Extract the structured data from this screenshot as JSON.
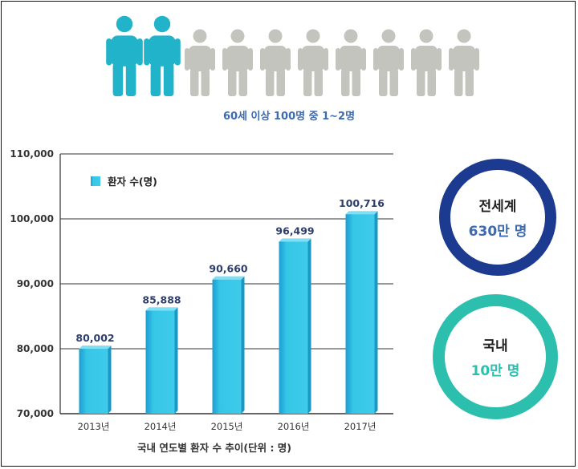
{
  "header": {
    "people_total": 10,
    "people_highlighted": 2,
    "highlight_color": "#20b3c9",
    "muted_color": "#c4c4bf",
    "caption": "60세 이상 100명 중 1~2명"
  },
  "chart_data": {
    "type": "bar",
    "categories": [
      "2013년",
      "2014년",
      "2015년",
      "2016년",
      "2017년"
    ],
    "values": [
      80002,
      85888,
      90660,
      96499,
      100716
    ],
    "value_labels": [
      "80,002",
      "85,888",
      "90,660",
      "96,499",
      "100,716"
    ],
    "ylim": [
      70000,
      110000
    ],
    "yticks": [
      70000,
      80000,
      90000,
      100000,
      110000
    ],
    "ytick_labels": [
      "70,000",
      "80,000",
      "90,000",
      "100,000",
      "110,000"
    ],
    "legend": {
      "label": "환자 수(명)",
      "placement": "top-left"
    },
    "xlabel": "국내 연도별 환자 수 추이(단위 : 명)",
    "grid": true,
    "bar_color": "#35c6e6"
  },
  "stats": {
    "world": {
      "label": "전세계",
      "value": "630만 명",
      "color": "#1c3a8f"
    },
    "domestic": {
      "label": "국내",
      "value": "10만 명",
      "color": "#2dbfae"
    }
  }
}
